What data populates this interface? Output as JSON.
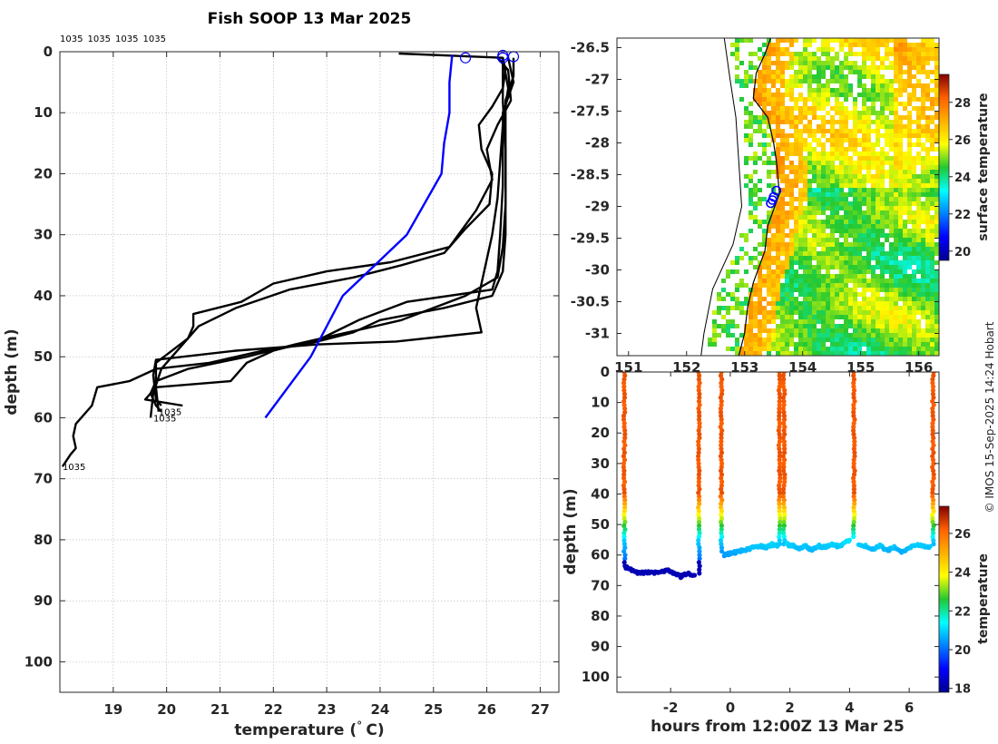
{
  "figure": {
    "title": "Fish SOOP 13 Mar 2025",
    "credit": "© IMOS 15-Sep-2025 14:24 Hobart"
  },
  "chart_data": [
    {
      "type": "line",
      "panel": "profiles",
      "title": "Fish SOOP 13 Mar 2025",
      "xlabel": "temperature (° C)",
      "ylabel": "depth (m)",
      "xlim": [
        18,
        27.35
      ],
      "ylim": [
        0,
        105
      ],
      "y_reversed": true,
      "grid": true,
      "xticks": [
        19,
        20,
        21,
        22,
        23,
        24,
        25,
        26,
        27
      ],
      "yticks": [
        0,
        10,
        20,
        30,
        40,
        50,
        60,
        70,
        80,
        90,
        100
      ],
      "top_labels": [
        "1035",
        "1035",
        "1035",
        "1035"
      ],
      "end_labels": [
        {
          "text": "1035",
          "x": 19.85,
          "y": 59
        },
        {
          "text": "1035",
          "x": 19.75,
          "y": 60
        },
        {
          "text": "1035",
          "x": 18.05,
          "y": 68
        }
      ],
      "start_markers": [
        {
          "x": 25.6,
          "y": 1
        },
        {
          "x": 26.3,
          "y": 0.6
        },
        {
          "x": 26.5,
          "y": 0.8
        },
        {
          "x": 26.3,
          "y": 1
        }
      ],
      "series": [
        {
          "name": "1035 a",
          "color": "#000000",
          "points": [
            [
              24.35,
              0.3
            ],
            [
              26.3,
              1
            ],
            [
              26.35,
              3
            ],
            [
              26.3,
              6
            ],
            [
              26.1,
              9
            ],
            [
              25.85,
              12
            ],
            [
              25.9,
              16
            ],
            [
              26.1,
              20
            ],
            [
              26.05,
              25
            ],
            [
              25.6,
              29
            ],
            [
              25.2,
              33
            ],
            [
              24.4,
              35
            ],
            [
              23.5,
              37
            ],
            [
              22.3,
              39
            ],
            [
              21.3,
              42
            ],
            [
              20.6,
              45
            ],
            [
              20.3,
              48
            ],
            [
              19.9,
              52
            ],
            [
              19.75,
              56
            ],
            [
              19.7,
              60
            ]
          ]
        },
        {
          "name": "1035 b",
          "color": "#000000",
          "points": [
            [
              26.2,
              1
            ],
            [
              26.4,
              3
            ],
            [
              26.45,
              8
            ],
            [
              26.2,
              12
            ],
            [
              26.0,
              16
            ],
            [
              26.1,
              21
            ],
            [
              25.8,
              26
            ],
            [
              25.3,
              32
            ],
            [
              24.2,
              34.5
            ],
            [
              23.0,
              36
            ],
            [
              22.0,
              38
            ],
            [
              21.4,
              41
            ],
            [
              20.5,
              43
            ],
            [
              20.5,
              45
            ],
            [
              20.4,
              47
            ],
            [
              19.8,
              51
            ],
            [
              19.8,
              55
            ],
            [
              19.85,
              59
            ]
          ]
        },
        {
          "name": "1035 c",
          "color": "#000000",
          "points": [
            [
              26.5,
              1
            ],
            [
              26.5,
              4
            ],
            [
              26.35,
              8
            ],
            [
              26.35,
              14
            ],
            [
              26.35,
              22
            ],
            [
              26.35,
              30
            ],
            [
              26.3,
              36
            ],
            [
              26.1,
              40
            ],
            [
              25.2,
              42
            ],
            [
              24.0,
              44
            ],
            [
              23.5,
              46
            ],
            [
              22.6,
              48
            ],
            [
              21.8,
              49
            ],
            [
              20.8,
              51
            ],
            [
              19.8,
              52
            ],
            [
              19.3,
              54
            ],
            [
              18.7,
              55
            ],
            [
              18.6,
              58
            ],
            [
              18.3,
              61
            ],
            [
              18.25,
              63
            ],
            [
              18.3,
              65
            ],
            [
              18.2,
              66
            ],
            [
              18.05,
              68
            ]
          ]
        },
        {
          "name": "1035 d",
          "color": "#000000",
          "points": [
            [
              26.4,
              1
            ],
            [
              26.5,
              5
            ],
            [
              26.3,
              10
            ],
            [
              26.3,
              15
            ],
            [
              26.3,
              22
            ],
            [
              26.25,
              30
            ],
            [
              26.2,
              36
            ],
            [
              26.1,
              39
            ],
            [
              24.5,
              41
            ],
            [
              23.6,
              44
            ],
            [
              22.9,
              47
            ],
            [
              22.0,
              49
            ],
            [
              21.5,
              51
            ],
            [
              21.2,
              54
            ],
            [
              19.8,
              55
            ],
            [
              19.6,
              57
            ],
            [
              20.3,
              58
            ]
          ]
        },
        {
          "name": "1035 e",
          "color": "#000000",
          "points": [
            [
              26.3,
              1
            ],
            [
              26.3,
              8
            ],
            [
              26.35,
              16
            ],
            [
              26.35,
              25
            ],
            [
              26.3,
              32
            ],
            [
              26.2,
              37
            ],
            [
              25.6,
              40
            ],
            [
              25.0,
              42
            ],
            [
              24.4,
              44
            ],
            [
              23.4,
              46
            ],
            [
              22.4,
              48
            ],
            [
              21.5,
              50
            ],
            [
              20.4,
              52
            ],
            [
              19.8,
              54
            ],
            [
              19.7,
              56
            ],
            [
              19.8,
              58
            ],
            [
              19.9,
              59
            ]
          ]
        },
        {
          "name": "1035 f",
          "color": "#000000",
          "points": [
            [
              26.3,
              1
            ],
            [
              26.4,
              6
            ],
            [
              26.3,
              12
            ],
            [
              26.25,
              18
            ],
            [
              26.2,
              24
            ],
            [
              26.1,
              30
            ],
            [
              26.0,
              34
            ],
            [
              25.9,
              38
            ],
            [
              25.8,
              42
            ],
            [
              25.9,
              46
            ],
            [
              24.3,
              47.5
            ],
            [
              22.8,
              48
            ],
            [
              21.3,
              49
            ],
            [
              19.8,
              50.5
            ],
            [
              19.75,
              53
            ],
            [
              19.8,
              57
            ],
            [
              19.9,
              58
            ]
          ]
        },
        {
          "name": "1035 g",
          "color": "#0000ff",
          "points": [
            [
              25.35,
              0.5
            ],
            [
              25.3,
              5
            ],
            [
              25.3,
              10
            ],
            [
              25.2,
              15
            ],
            [
              25.15,
              20
            ],
            [
              24.5,
              30
            ],
            [
              23.3,
              40
            ],
            [
              22.7,
              50
            ],
            [
              21.85,
              60
            ]
          ]
        }
      ]
    },
    {
      "type": "heatmap",
      "panel": "map",
      "colorbar_label": "surface temperature",
      "colorbar_range": [
        19.5,
        29.5
      ],
      "colorbar_ticks": [
        20,
        22,
        24,
        26,
        28
      ],
      "xlim": [
        150.8,
        156.35
      ],
      "ylim": [
        -31.35,
        -26.35
      ],
      "xticks": [
        151,
        152,
        153,
        154,
        155,
        156
      ],
      "xtick_labels": [
        "151",
        "152",
        "153",
        "154",
        "155",
        "156"
      ],
      "yticks": [
        -26.5,
        -27,
        -27.5,
        -28,
        -28.5,
        -29,
        -29.5,
        -30,
        -30.5,
        -31
      ],
      "ytick_labels": [
        "-26.5",
        "-27",
        "-27.5",
        "-28",
        "-28.5",
        "-29",
        "-29.5",
        "-30",
        "-30.5",
        "-31"
      ],
      "coastline": [
        [
          153.45,
          -26.35
        ],
        [
          153.35,
          -26.6
        ],
        [
          153.2,
          -26.9
        ],
        [
          153.15,
          -27.3
        ],
        [
          153.4,
          -27.6
        ],
        [
          153.5,
          -28.0
        ],
        [
          153.55,
          -28.3
        ],
        [
          153.6,
          -28.8
        ],
        [
          153.4,
          -29.3
        ],
        [
          153.35,
          -29.7
        ],
        [
          153.15,
          -30.2
        ],
        [
          153.05,
          -30.6
        ],
        [
          153.0,
          -31.0
        ],
        [
          152.9,
          -31.35
        ]
      ],
      "coast_offset_line": [
        [
          152.65,
          -26.35
        ],
        [
          152.75,
          -27.0
        ],
        [
          152.85,
          -27.6
        ],
        [
          152.9,
          -28.3
        ],
        [
          152.95,
          -29.0
        ],
        [
          152.8,
          -29.6
        ],
        [
          152.45,
          -30.3
        ],
        [
          152.3,
          -31.0
        ],
        [
          152.25,
          -31.35
        ]
      ],
      "track_points": [
        [
          153.55,
          -28.75
        ],
        [
          153.5,
          -28.85
        ],
        [
          153.48,
          -28.9
        ],
        [
          153.45,
          -28.95
        ]
      ]
    },
    {
      "type": "scatter",
      "panel": "depth-time",
      "xlabel": "hours from 12:00Z 13 Mar 25",
      "ylabel": "depth (m)",
      "colorbar_label": "temperature",
      "colorbar_range": [
        17.8,
        27.4
      ],
      "colorbar_ticks": [
        18,
        20,
        22,
        24,
        26
      ],
      "xlim": [
        -3.8,
        7.0
      ],
      "ylim": [
        0,
        105
      ],
      "y_reversed": true,
      "xticks": [
        -2,
        0,
        2,
        4,
        6
      ],
      "yticks": [
        0,
        10,
        20,
        30,
        40,
        50,
        60,
        70,
        80,
        90,
        100
      ],
      "dive_starts": [
        -3.55,
        -1.05,
        -0.3,
        1.65,
        1.8,
        4.15,
        6.8
      ],
      "bottom_segments": [
        {
          "from": -3.5,
          "to": -1.2,
          "depths": [
            64,
            65,
            66,
            65.5,
            66,
            65.5,
            65,
            66,
            67,
            66,
            67
          ]
        },
        {
          "from": -0.2,
          "to": 1.6,
          "depths": [
            60,
            59.5,
            59,
            58.5,
            58,
            57.5,
            57,
            57.5,
            56.5,
            57
          ]
        },
        {
          "from": 1.9,
          "to": 4.0,
          "depths": [
            56.5,
            57,
            58,
            57,
            58.5,
            57,
            57.5,
            56.5,
            57,
            56.5,
            55
          ]
        },
        {
          "from": 4.3,
          "to": 6.7,
          "depths": [
            56.5,
            57,
            58,
            57,
            58.5,
            57.5,
            59,
            58,
            56.5,
            57,
            57.5
          ]
        }
      ]
    }
  ]
}
